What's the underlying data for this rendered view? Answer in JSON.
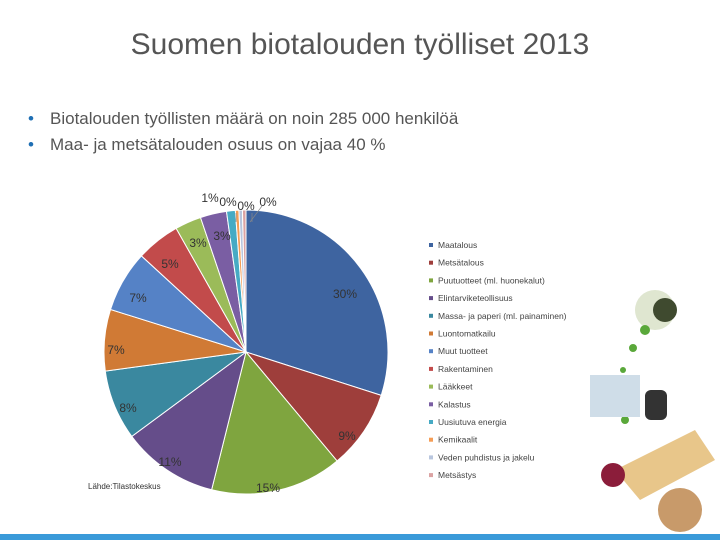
{
  "title": "Suomen biotalouden työlliset 2013",
  "bullets": [
    "Biotalouden työllisten määrä on noin 285 000 henkilöä",
    "Maa- ja metsätalouden osuus on vajaa 40 %"
  ],
  "source": "Lähde:Tilastokeskus",
  "chart_data": {
    "type": "pie",
    "title": "",
    "series": [
      {
        "name": "Maatalous",
        "value": 30,
        "label": "30%",
        "color": "#3e64a0"
      },
      {
        "name": "Metsätalous",
        "value": 9,
        "label": "9%",
        "color": "#9e3e3b"
      },
      {
        "name": "Puutuotteet (ml. huonekalut)",
        "value": 15,
        "label": "15%",
        "color": "#7fa53f"
      },
      {
        "name": "Elintarviketeollisuus",
        "value": 11,
        "label": "11%",
        "color": "#654d8a"
      },
      {
        "name": "Massa- ja paperi (ml. painaminen)",
        "value": 8,
        "label": "8%",
        "color": "#3a889f"
      },
      {
        "name": "Luontomatkailu",
        "value": 7,
        "label": "7%",
        "color": "#d07a35"
      },
      {
        "name": "Muut tuotteet",
        "value": 7,
        "label": "7%",
        "color": "#5582c6"
      },
      {
        "name": "Rakentaminen",
        "value": 5,
        "label": "5%",
        "color": "#c24b4b"
      },
      {
        "name": "Lääkkeet",
        "value": 3,
        "label": "3%",
        "color": "#9bbb59"
      },
      {
        "name": "Kalastus",
        "value": 3,
        "label": "3%",
        "color": "#7a5ea3"
      },
      {
        "name": "Uusiutuva energia",
        "value": 1,
        "label": "1%",
        "color": "#46aac4"
      },
      {
        "name": "Kemikaalit",
        "value": 0.4,
        "label": "0%",
        "color": "#f59d56"
      },
      {
        "name": "Veden puhdistus ja jakelu",
        "value": 0.4,
        "label": "0%",
        "color": "#b9c6de"
      },
      {
        "name": "Metsästys",
        "value": 0.4,
        "label": "0%",
        "color": "#dba3a3"
      }
    ],
    "legend_position": "right",
    "legend_order": [
      "Maatalous",
      "Metsätalous",
      "Puutuotteet (ml. huonekalut)",
      "Elintarviketeollisuus",
      "Massa- ja paperi (ml. painaminen)",
      "Luontomatkailu",
      "Muut tuotteet",
      "Rakentaminen",
      "Lääkkeet",
      "Kalastus",
      "Uusiutuva energia",
      "Kemikaalit",
      "Veden puhdistus ja jakelu",
      "Metsästys"
    ],
    "legend_colors": [
      "#3e64a0",
      "#9e3e3b",
      "#7fa53f",
      "#654d8a",
      "#3a889f",
      "#d07a35",
      "#5582c6",
      "#c24b4b",
      "#9bbb59",
      "#7a5ea3",
      "#46aac4",
      "#f59d56",
      "#b9c6de",
      "#dba3a3"
    ]
  }
}
